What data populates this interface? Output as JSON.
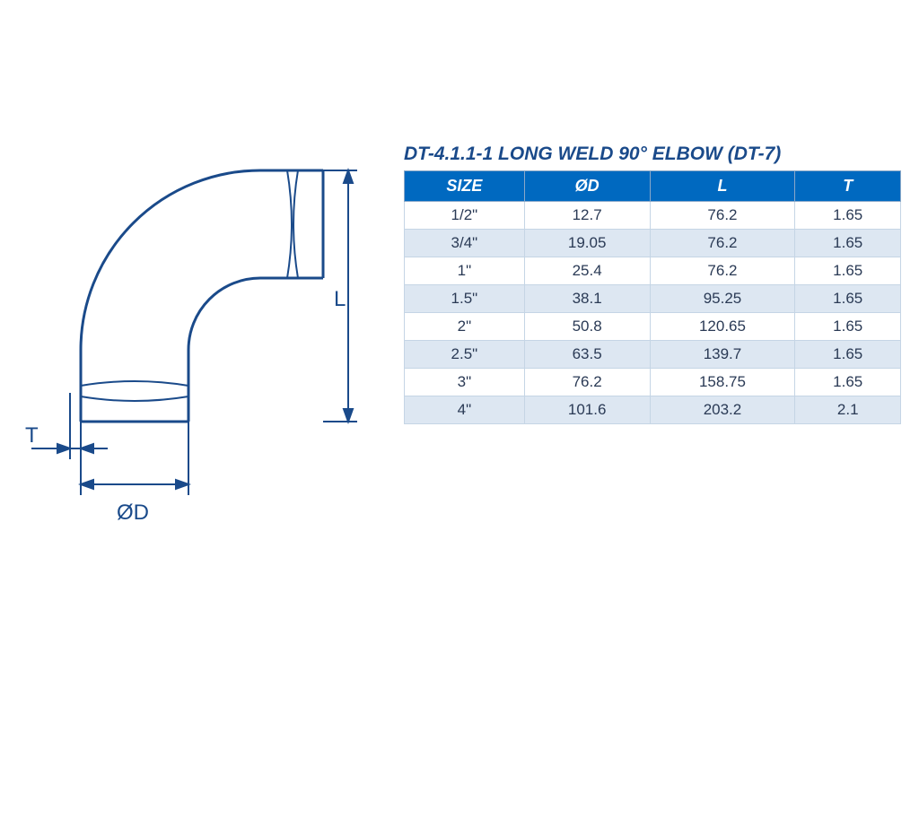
{
  "title": "DT-4.1.1-1 LONG WELD 90° ELBOW (DT-7)",
  "diagram": {
    "labels": {
      "T": "T",
      "OD": "ØD",
      "L": "L"
    },
    "stroke_color": "#1a4a8a",
    "stroke_width": 3
  },
  "table": {
    "header_bg": "#0069c0",
    "header_fg": "#ffffff",
    "row_odd_bg": "#ffffff",
    "row_even_bg": "#dde7f2",
    "border_color": "#c5d5e5",
    "text_color": "#2a3a55",
    "columns": [
      "SIZE",
      "ØD",
      "L",
      "T"
    ],
    "rows": [
      [
        "1/2\"",
        "12.7",
        "76.2",
        "1.65"
      ],
      [
        "3/4\"",
        "19.05",
        "76.2",
        "1.65"
      ],
      [
        "1\"",
        "25.4",
        "76.2",
        "1.65"
      ],
      [
        "1.5\"",
        "38.1",
        "95.25",
        "1.65"
      ],
      [
        "2\"",
        "50.8",
        "120.65",
        "1.65"
      ],
      [
        "2.5\"",
        "63.5",
        "139.7",
        "1.65"
      ],
      [
        "3\"",
        "76.2",
        "158.75",
        "1.65"
      ],
      [
        "4\"",
        "101.6",
        "203.2",
        "2.1"
      ]
    ]
  }
}
